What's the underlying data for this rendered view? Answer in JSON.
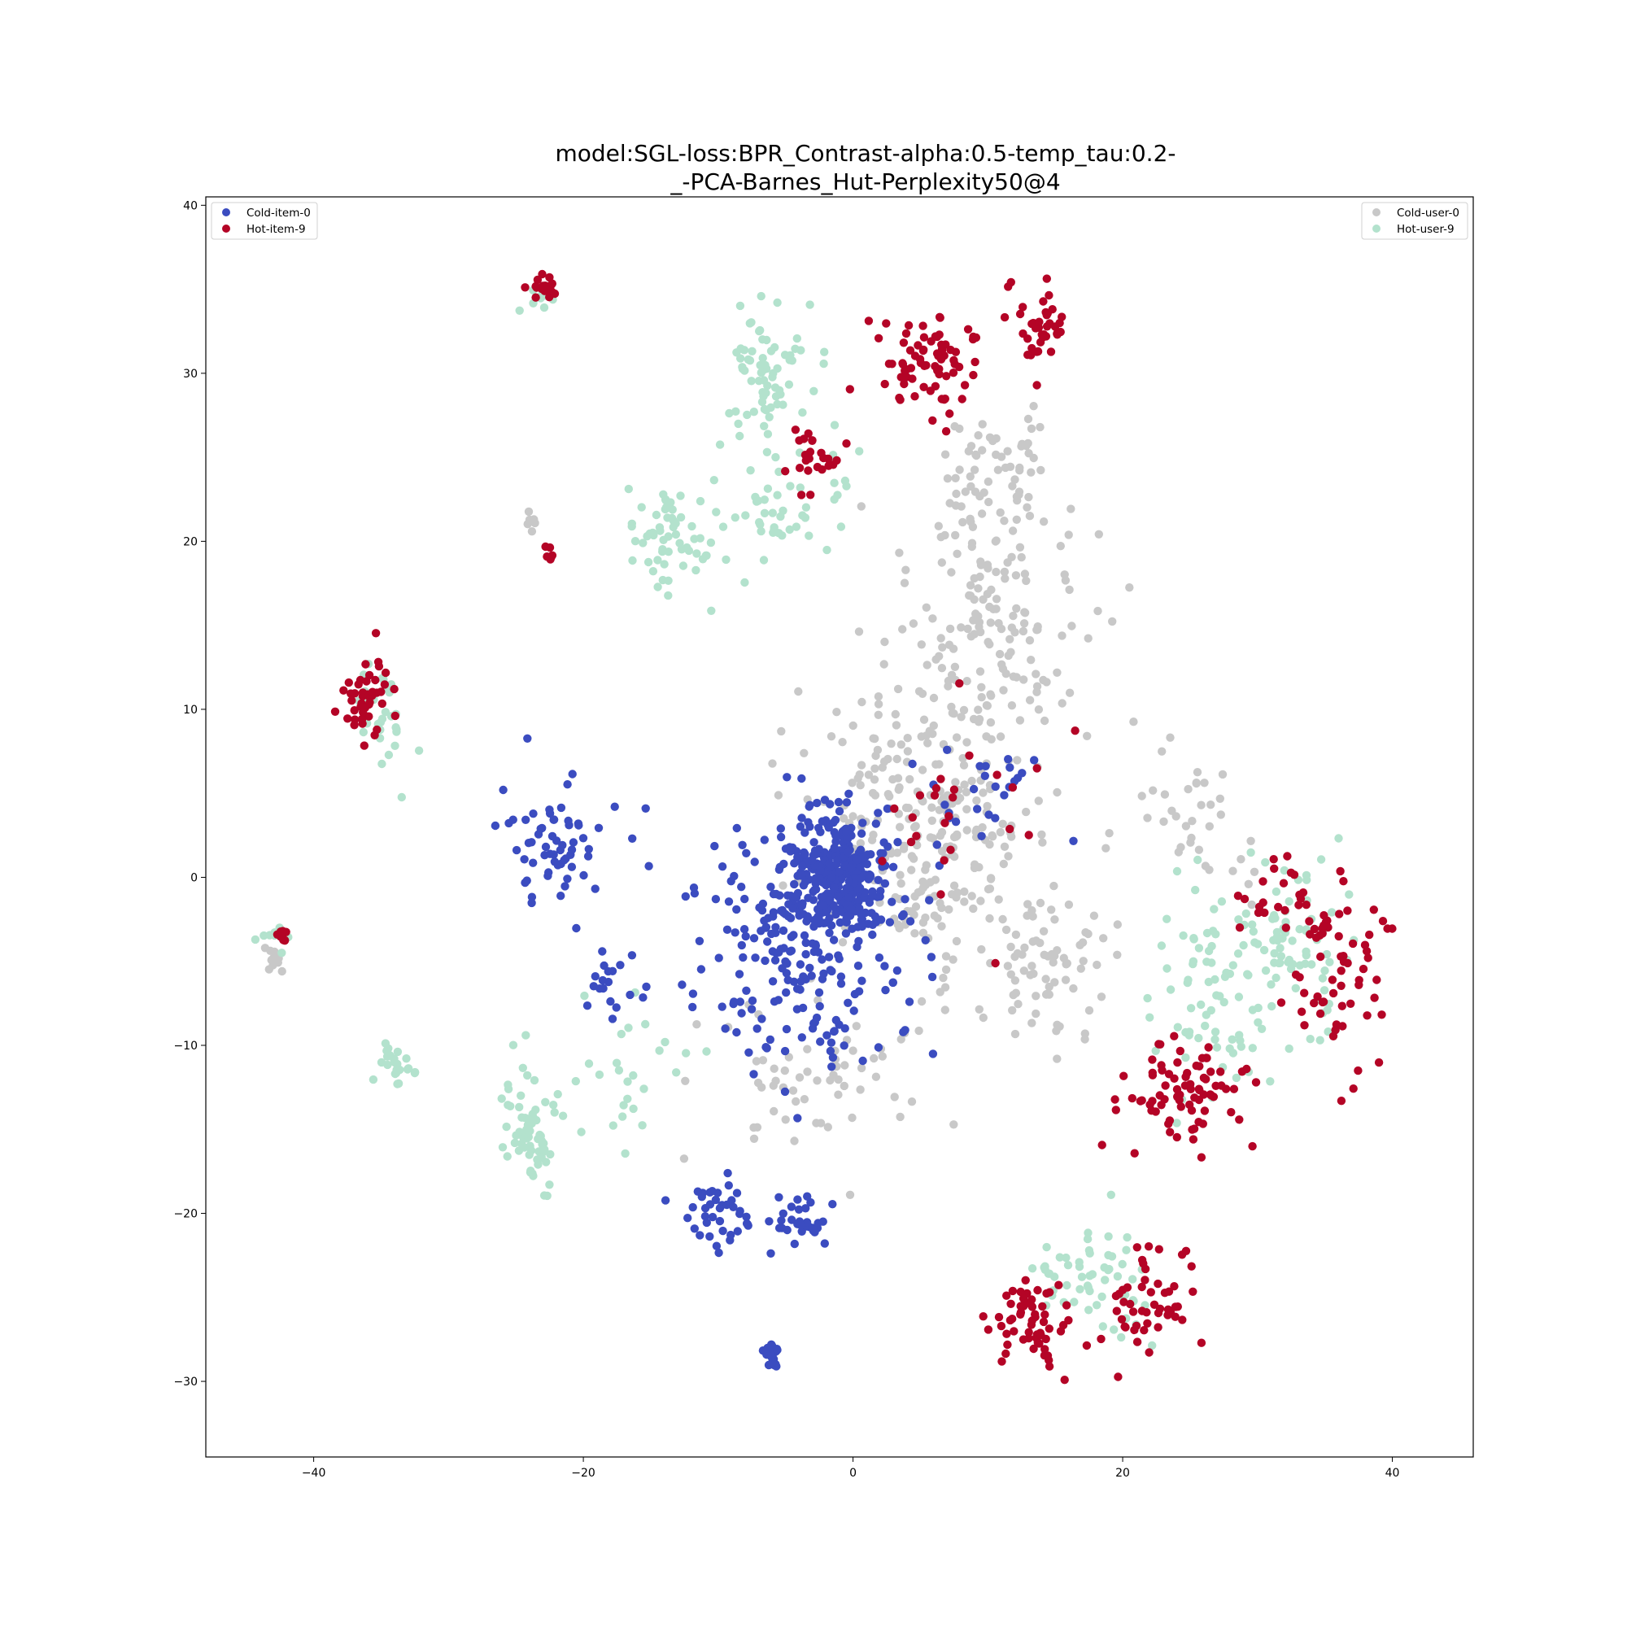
{
  "chart_data": {
    "type": "scatter",
    "title_lines": [
      "model:SGL-loss:BPR_Contrast-alpha:0.5-temp_tau:0.2-",
      "_-PCA-Barnes_Hut-Perplexity50@4"
    ],
    "xlabel": "",
    "ylabel": "",
    "xlim": [
      -48,
      46
    ],
    "ylim": [
      -34.5,
      40.5
    ],
    "xticks": [
      -40,
      -20,
      0,
      20,
      40
    ],
    "yticks": [
      40,
      30,
      20,
      10,
      0,
      -10,
      -20,
      -30
    ],
    "xtick_labels": [
      "−40",
      "−20",
      "0",
      "20",
      "40"
    ],
    "ytick_labels": [
      "40",
      "30",
      "20",
      "10",
      "0",
      "−10",
      "−20",
      "−30"
    ],
    "grid": false,
    "legends": [
      {
        "placement": "top-left",
        "entries": [
          "Cold-item-0",
          "Hot-item-9"
        ]
      },
      {
        "placement": "top-right",
        "entries": [
          "Cold-user-0",
          "Hot-user-9"
        ]
      }
    ],
    "series": [
      {
        "name": "Cold-user-0",
        "color": "#c8c8c8",
        "clusters": [
          {
            "center": [
              5,
              3
            ],
            "spread": [
              7,
              7
            ],
            "count": 280
          },
          {
            "center": [
              10,
              15
            ],
            "spread": [
              6,
              7
            ],
            "count": 150
          },
          {
            "center": [
              11,
              24
            ],
            "spread": [
              3.5,
              3
            ],
            "count": 60
          },
          {
            "center": [
              14,
              -5
            ],
            "spread": [
              4,
              4
            ],
            "count": 70
          },
          {
            "center": [
              -3,
              -12
            ],
            "spread": [
              7,
              4
            ],
            "count": 60
          },
          {
            "center": [
              -43,
              -5
            ],
            "spread": [
              0.8,
              0.8
            ],
            "count": 10
          },
          {
            "center": [
              -24,
              21
            ],
            "spread": [
              0.4,
              0.6
            ],
            "count": 6
          },
          {
            "center": [
              25,
              3
            ],
            "spread": [
              5,
              4
            ],
            "count": 40
          }
        ]
      },
      {
        "name": "Hot-user-9",
        "color": "#b3e2cd",
        "clusters": [
          {
            "center": [
              -6,
              30
            ],
            "spread": [
              3,
              3
            ],
            "count": 70
          },
          {
            "center": [
              -14,
              20
            ],
            "spread": [
              2.5,
              3
            ],
            "count": 60
          },
          {
            "center": [
              -5,
              22
            ],
            "spread": [
              4,
              4
            ],
            "count": 50
          },
          {
            "center": [
              -24,
              -15
            ],
            "spread": [
              2,
              3
            ],
            "count": 70
          },
          {
            "center": [
              -34,
              -11
            ],
            "spread": [
              1.2,
              1.6
            ],
            "count": 25
          },
          {
            "center": [
              -35,
              10
            ],
            "spread": [
              1.5,
              3
            ],
            "count": 30
          },
          {
            "center": [
              -23,
              34.5
            ],
            "spread": [
              1.2,
              0.8
            ],
            "count": 10
          },
          {
            "center": [
              28,
              -7
            ],
            "spread": [
              5,
              5
            ],
            "count": 90
          },
          {
            "center": [
              33,
              -4
            ],
            "spread": [
              3,
              4
            ],
            "count": 60
          },
          {
            "center": [
              18,
              -24
            ],
            "spread": [
              4,
              3
            ],
            "count": 60
          },
          {
            "center": [
              -16,
              -12
            ],
            "spread": [
              4,
              4
            ],
            "count": 25
          },
          {
            "center": [
              -43,
              -3.5
            ],
            "spread": [
              1,
              0.8
            ],
            "count": 8
          }
        ]
      },
      {
        "name": "Cold-item-0",
        "color": "#3b4cc0",
        "clusters": [
          {
            "center": [
              -1,
              0
            ],
            "spread": [
              3,
              3
            ],
            "count": 320
          },
          {
            "center": [
              -4,
              -4
            ],
            "spread": [
              7,
              6
            ],
            "count": 230
          },
          {
            "center": [
              -22,
              2
            ],
            "spread": [
              3,
              3
            ],
            "count": 60
          },
          {
            "center": [
              -18,
              -6
            ],
            "spread": [
              2,
              2
            ],
            "count": 20
          },
          {
            "center": [
              -10,
              -20
            ],
            "spread": [
              2.5,
              2
            ],
            "count": 40
          },
          {
            "center": [
              -4,
              -20.5
            ],
            "spread": [
              2,
              1.3
            ],
            "count": 30
          },
          {
            "center": [
              -6,
              -28.5
            ],
            "spread": [
              0.6,
              0.8
            ],
            "count": 25
          },
          {
            "center": [
              10,
              5
            ],
            "spread": [
              4,
              3
            ],
            "count": 25
          }
        ]
      },
      {
        "name": "Hot-item-9",
        "color": "#b40426",
        "clusters": [
          {
            "center": [
              6,
              30.5
            ],
            "spread": [
              3,
              2.5
            ],
            "count": 75
          },
          {
            "center": [
              14,
              33
            ],
            "spread": [
              2,
              2
            ],
            "count": 40
          },
          {
            "center": [
              -3,
              24.5
            ],
            "spread": [
              2,
              1.5
            ],
            "count": 25
          },
          {
            "center": [
              -22.5,
              35
            ],
            "spread": [
              1,
              0.6
            ],
            "count": 20
          },
          {
            "center": [
              -36,
              10.5
            ],
            "spread": [
              1.5,
              2
            ],
            "count": 45
          },
          {
            "center": [
              -42.3,
              -3.5
            ],
            "spread": [
              0.5,
              0.4
            ],
            "count": 10
          },
          {
            "center": [
              -22.5,
              19.5
            ],
            "spread": [
              0.3,
              0.6
            ],
            "count": 6
          },
          {
            "center": [
              25,
              -13
            ],
            "spread": [
              4,
              2.5
            ],
            "count": 80
          },
          {
            "center": [
              36,
              -6
            ],
            "spread": [
              3,
              4
            ],
            "count": 60
          },
          {
            "center": [
              32,
              -1
            ],
            "spread": [
              2.5,
              2
            ],
            "count": 25
          },
          {
            "center": [
              13,
              -26.5
            ],
            "spread": [
              3,
              2.5
            ],
            "count": 60
          },
          {
            "center": [
              22,
              -25.5
            ],
            "spread": [
              3,
              3
            ],
            "count": 50
          },
          {
            "center": [
              9,
              5
            ],
            "spread": [
              5,
              6
            ],
            "count": 25
          }
        ]
      }
    ]
  }
}
